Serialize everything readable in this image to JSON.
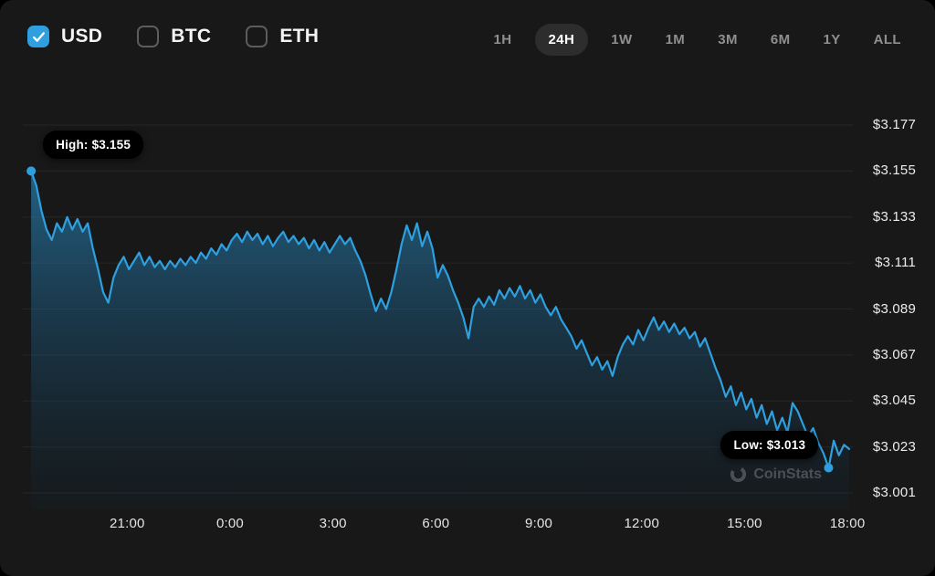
{
  "toolbar": {
    "currencies": [
      {
        "label": "USD",
        "checked": true
      },
      {
        "label": "BTC",
        "checked": false
      },
      {
        "label": "ETH",
        "checked": false
      }
    ],
    "ranges": [
      {
        "label": "1H",
        "active": false
      },
      {
        "label": "24H",
        "active": true
      },
      {
        "label": "1W",
        "active": false
      },
      {
        "label": "1M",
        "active": false
      },
      {
        "label": "3M",
        "active": false
      },
      {
        "label": "6M",
        "active": false
      },
      {
        "label": "1Y",
        "active": false
      },
      {
        "label": "ALL",
        "active": false
      }
    ]
  },
  "watermark": {
    "label": "CoinStats"
  },
  "chart_data": {
    "type": "area",
    "title": "24H price chart (USD)",
    "line_color": "#2ea0e0",
    "grid": true,
    "legend": "none",
    "x_range": [
      18.17,
      42.05
    ],
    "y_range": [
      3.001,
      3.177
    ],
    "x_ticks": [
      {
        "hod": 21,
        "label": "21:00"
      },
      {
        "hod": 24,
        "label": "0:00"
      },
      {
        "hod": 27,
        "label": "3:00"
      },
      {
        "hod": 30,
        "label": "6:00"
      },
      {
        "hod": 33,
        "label": "9:00"
      },
      {
        "hod": 36,
        "label": "12:00"
      },
      {
        "hod": 39,
        "label": "15:00"
      },
      {
        "hod": 42,
        "label": "18:00"
      }
    ],
    "y_ticks": [
      {
        "value": 3.177,
        "label": "$3.177"
      },
      {
        "value": 3.155,
        "label": "$3.155"
      },
      {
        "value": 3.133,
        "label": "$3.133"
      },
      {
        "value": 3.111,
        "label": "$3.111"
      },
      {
        "value": 3.089,
        "label": "$3.089"
      },
      {
        "value": 3.067,
        "label": "$3.067"
      },
      {
        "value": 3.045,
        "label": "$3.045"
      },
      {
        "value": 3.023,
        "label": "$3.023"
      },
      {
        "value": 3.001,
        "label": "$3.001"
      }
    ],
    "annotations": {
      "high": {
        "label": "High: $3.155",
        "hod": 18.2,
        "value": 3.155
      },
      "low": {
        "label": "Low: $3.013",
        "hod": 41.45,
        "value": 3.013
      }
    },
    "points": [
      [
        18.2,
        3.155
      ],
      [
        18.35,
        3.148
      ],
      [
        18.5,
        3.136
      ],
      [
        18.65,
        3.127
      ],
      [
        18.8,
        3.122
      ],
      [
        18.95,
        3.13
      ],
      [
        19.1,
        3.126
      ],
      [
        19.25,
        3.133
      ],
      [
        19.4,
        3.127
      ],
      [
        19.55,
        3.132
      ],
      [
        19.7,
        3.126
      ],
      [
        19.85,
        3.13
      ],
      [
        20.0,
        3.118
      ],
      [
        20.15,
        3.108
      ],
      [
        20.3,
        3.097
      ],
      [
        20.45,
        3.092
      ],
      [
        20.6,
        3.104
      ],
      [
        20.75,
        3.11
      ],
      [
        20.9,
        3.114
      ],
      [
        21.05,
        3.108
      ],
      [
        21.2,
        3.112
      ],
      [
        21.35,
        3.116
      ],
      [
        21.5,
        3.11
      ],
      [
        21.65,
        3.114
      ],
      [
        21.8,
        3.109
      ],
      [
        21.95,
        3.112
      ],
      [
        22.1,
        3.108
      ],
      [
        22.25,
        3.112
      ],
      [
        22.4,
        3.109
      ],
      [
        22.55,
        3.113
      ],
      [
        22.7,
        3.11
      ],
      [
        22.85,
        3.114
      ],
      [
        23.0,
        3.111
      ],
      [
        23.15,
        3.116
      ],
      [
        23.3,
        3.113
      ],
      [
        23.45,
        3.118
      ],
      [
        23.6,
        3.115
      ],
      [
        23.75,
        3.12
      ],
      [
        23.9,
        3.117
      ],
      [
        24.05,
        3.122
      ],
      [
        24.2,
        3.125
      ],
      [
        24.35,
        3.121
      ],
      [
        24.5,
        3.126
      ],
      [
        24.65,
        3.122
      ],
      [
        24.8,
        3.125
      ],
      [
        24.95,
        3.12
      ],
      [
        25.1,
        3.124
      ],
      [
        25.25,
        3.119
      ],
      [
        25.4,
        3.123
      ],
      [
        25.55,
        3.126
      ],
      [
        25.7,
        3.121
      ],
      [
        25.85,
        3.124
      ],
      [
        26.0,
        3.12
      ],
      [
        26.15,
        3.123
      ],
      [
        26.3,
        3.118
      ],
      [
        26.45,
        3.122
      ],
      [
        26.6,
        3.117
      ],
      [
        26.75,
        3.121
      ],
      [
        26.9,
        3.116
      ],
      [
        27.05,
        3.12
      ],
      [
        27.2,
        3.124
      ],
      [
        27.35,
        3.12
      ],
      [
        27.5,
        3.123
      ],
      [
        27.65,
        3.117
      ],
      [
        27.8,
        3.112
      ],
      [
        27.95,
        3.105
      ],
      [
        28.1,
        3.096
      ],
      [
        28.25,
        3.088
      ],
      [
        28.4,
        3.094
      ],
      [
        28.55,
        3.089
      ],
      [
        28.7,
        3.097
      ],
      [
        28.85,
        3.108
      ],
      [
        29.0,
        3.12
      ],
      [
        29.15,
        3.129
      ],
      [
        29.3,
        3.122
      ],
      [
        29.45,
        3.13
      ],
      [
        29.6,
        3.119
      ],
      [
        29.75,
        3.126
      ],
      [
        29.9,
        3.118
      ],
      [
        30.05,
        3.104
      ],
      [
        30.2,
        3.11
      ],
      [
        30.35,
        3.105
      ],
      [
        30.5,
        3.098
      ],
      [
        30.65,
        3.092
      ],
      [
        30.8,
        3.085
      ],
      [
        30.95,
        3.075
      ],
      [
        31.1,
        3.09
      ],
      [
        31.25,
        3.094
      ],
      [
        31.4,
        3.09
      ],
      [
        31.55,
        3.095
      ],
      [
        31.7,
        3.091
      ],
      [
        31.85,
        3.098
      ],
      [
        32.0,
        3.094
      ],
      [
        32.15,
        3.099
      ],
      [
        32.3,
        3.095
      ],
      [
        32.45,
        3.1
      ],
      [
        32.6,
        3.094
      ],
      [
        32.75,
        3.098
      ],
      [
        32.9,
        3.092
      ],
      [
        33.05,
        3.096
      ],
      [
        33.2,
        3.09
      ],
      [
        33.35,
        3.086
      ],
      [
        33.5,
        3.09
      ],
      [
        33.65,
        3.084
      ],
      [
        33.8,
        3.08
      ],
      [
        33.95,
        3.076
      ],
      [
        34.1,
        3.07
      ],
      [
        34.25,
        3.074
      ],
      [
        34.4,
        3.068
      ],
      [
        34.55,
        3.062
      ],
      [
        34.7,
        3.066
      ],
      [
        34.85,
        3.06
      ],
      [
        35.0,
        3.064
      ],
      [
        35.15,
        3.057
      ],
      [
        35.3,
        3.066
      ],
      [
        35.45,
        3.072
      ],
      [
        35.6,
        3.076
      ],
      [
        35.75,
        3.072
      ],
      [
        35.9,
        3.079
      ],
      [
        36.05,
        3.074
      ],
      [
        36.2,
        3.08
      ],
      [
        36.35,
        3.085
      ],
      [
        36.5,
        3.079
      ],
      [
        36.65,
        3.083
      ],
      [
        36.8,
        3.078
      ],
      [
        36.95,
        3.082
      ],
      [
        37.1,
        3.077
      ],
      [
        37.25,
        3.08
      ],
      [
        37.4,
        3.075
      ],
      [
        37.55,
        3.078
      ],
      [
        37.7,
        3.071
      ],
      [
        37.85,
        3.075
      ],
      [
        38.0,
        3.068
      ],
      [
        38.15,
        3.061
      ],
      [
        38.3,
        3.055
      ],
      [
        38.45,
        3.047
      ],
      [
        38.6,
        3.052
      ],
      [
        38.75,
        3.043
      ],
      [
        38.9,
        3.049
      ],
      [
        39.05,
        3.041
      ],
      [
        39.2,
        3.046
      ],
      [
        39.35,
        3.037
      ],
      [
        39.5,
        3.043
      ],
      [
        39.65,
        3.034
      ],
      [
        39.8,
        3.04
      ],
      [
        39.95,
        3.031
      ],
      [
        40.1,
        3.037
      ],
      [
        40.25,
        3.03
      ],
      [
        40.4,
        3.044
      ],
      [
        40.55,
        3.04
      ],
      [
        40.7,
        3.034
      ],
      [
        40.85,
        3.028
      ],
      [
        41.0,
        3.032
      ],
      [
        41.15,
        3.025
      ],
      [
        41.3,
        3.02
      ],
      [
        41.45,
        3.013
      ],
      [
        41.6,
        3.026
      ],
      [
        41.75,
        3.019
      ],
      [
        41.9,
        3.024
      ],
      [
        42.05,
        3.022
      ]
    ]
  }
}
